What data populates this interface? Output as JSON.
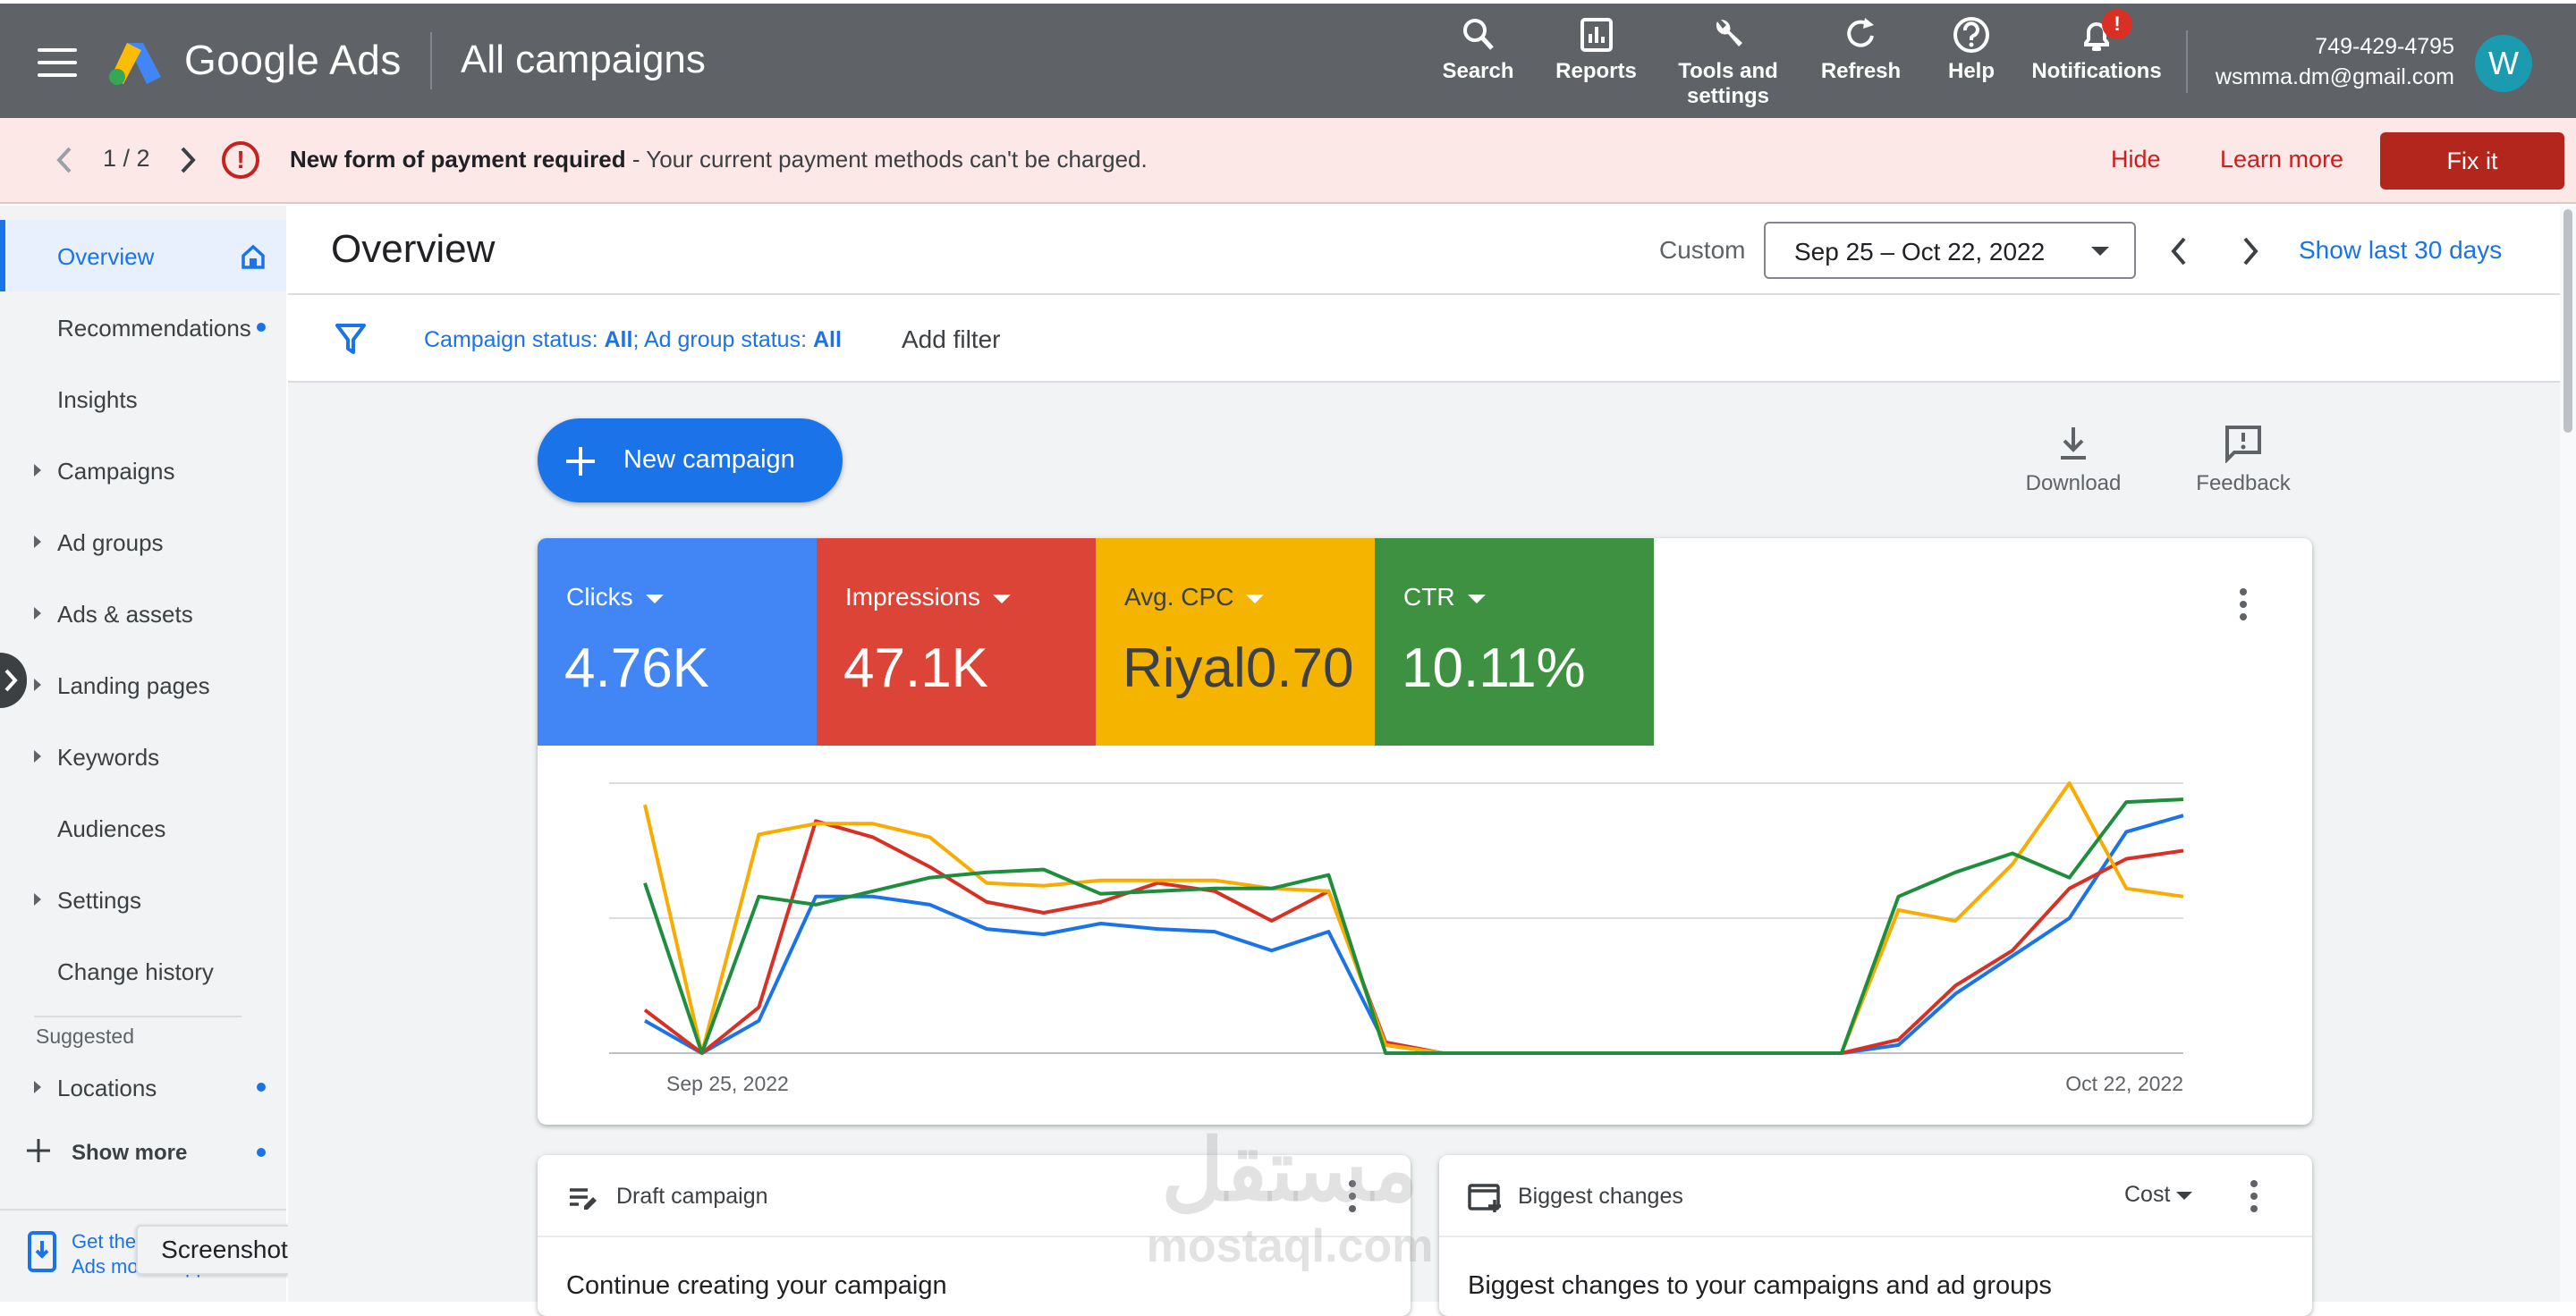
{
  "header": {
    "brand": "Google Ads",
    "page_title": "All campaigns",
    "tools": [
      {
        "label": "Search",
        "icon": "search-icon"
      },
      {
        "label": "Reports",
        "icon": "reports-icon"
      },
      {
        "label": "Tools and settings",
        "icon": "wrench-icon"
      },
      {
        "label": "Refresh",
        "icon": "refresh-icon"
      },
      {
        "label": "Help",
        "icon": "help-icon"
      },
      {
        "label": "Notifications",
        "icon": "bell-icon"
      }
    ],
    "notification_badge": "!",
    "account_id": "749-429-4795",
    "account_email": "wsmma.dm@gmail.com",
    "avatar_letter": "W"
  },
  "banner": {
    "pager": "1 / 2",
    "message_bold": "New form of payment required",
    "message_rest": " - Your current payment methods can't be charged.",
    "hide_label": "Hide",
    "learn_more_label": "Learn more",
    "fix_label": "Fix it"
  },
  "sidebar": {
    "items": [
      {
        "label": "Overview",
        "expandable": false,
        "dot": false,
        "active": true
      },
      {
        "label": "Recommendations",
        "expandable": false,
        "dot": true
      },
      {
        "label": "Insights",
        "expandable": false,
        "dot": false
      },
      {
        "label": "Campaigns",
        "expandable": true,
        "dot": false
      },
      {
        "label": "Ad groups",
        "expandable": true,
        "dot": false
      },
      {
        "label": "Ads & assets",
        "expandable": true,
        "dot": false
      },
      {
        "label": "Landing pages",
        "expandable": true,
        "dot": false
      },
      {
        "label": "Keywords",
        "expandable": true,
        "dot": false
      },
      {
        "label": "Audiences",
        "expandable": false,
        "dot": false
      },
      {
        "label": "Settings",
        "expandable": true,
        "dot": false
      },
      {
        "label": "Change history",
        "expandable": false,
        "dot": false
      }
    ],
    "suggested_label": "Suggested",
    "locations_label": "Locations",
    "show_more_label": "Show more",
    "get_app_line1": "Get the",
    "get_app_line2": "Ads mobile app",
    "tooltip": "Screenshot"
  },
  "overview": {
    "title": "Overview",
    "custom_label": "Custom",
    "date_range": "Sep 25 – Oct 22, 2022",
    "show_last_label": "Show last 30 days"
  },
  "filters": {
    "part1_label": "Campaign status: ",
    "part1_value": "All",
    "sep": "; ",
    "part2_label": "Ad group status: ",
    "part2_value": "All",
    "add_filter_label": "Add filter"
  },
  "actions": {
    "new_campaign_label": "New campaign",
    "download_label": "Download",
    "feedback_label": "Feedback"
  },
  "metrics": [
    {
      "label": "Clicks",
      "value": "4.76K",
      "color": "#4285f4"
    },
    {
      "label": "Impressions",
      "value": "47.1K",
      "color": "#db4437"
    },
    {
      "label": "Avg. CPC",
      "value": "Riyal0.70",
      "color": "#f4b400"
    },
    {
      "label": "CTR",
      "value": "10.11%",
      "color": "#3f9142"
    }
  ],
  "chart_data": {
    "type": "line",
    "x_start_label": "Sep 25, 2022",
    "x_end_label": "Oct 22, 2022",
    "x": [
      "Sep 25",
      "Sep 26",
      "Sep 27",
      "Sep 28",
      "Sep 29",
      "Sep 30",
      "Oct 1",
      "Oct 2",
      "Oct 3",
      "Oct 4",
      "Oct 5",
      "Oct 6",
      "Oct 7",
      "Oct 8",
      "Oct 9",
      "Oct 10",
      "Oct 11",
      "Oct 12",
      "Oct 13",
      "Oct 14",
      "Oct 15",
      "Oct 16",
      "Oct 17",
      "Oct 18",
      "Oct 19",
      "Oct 20",
      "Oct 21",
      "Oct 22"
    ],
    "ylim": [
      0,
      100
    ],
    "grid": true,
    "series": [
      {
        "color": "#1a73e8",
        "values": [
          12,
          0,
          12,
          58,
          58,
          55,
          46,
          44,
          48,
          46,
          45,
          38,
          45,
          3,
          0,
          0,
          0,
          0,
          0,
          0,
          0,
          0,
          3,
          22,
          36,
          50,
          82,
          88
        ]
      },
      {
        "color": "#d93025",
        "values": [
          16,
          0,
          17,
          86,
          80,
          69,
          56,
          52,
          56,
          63,
          60,
          49,
          60,
          4,
          0,
          0,
          0,
          0,
          0,
          0,
          0,
          0,
          5,
          25,
          38,
          61,
          72,
          75
        ]
      },
      {
        "color": "#f9ab00",
        "values": [
          92,
          0,
          81,
          85,
          85,
          80,
          63,
          62,
          64,
          64,
          64,
          61,
          60,
          3,
          0,
          0,
          0,
          0,
          0,
          0,
          0,
          0,
          53,
          49,
          70,
          100,
          61,
          58
        ]
      },
      {
        "color": "#1e8e3e",
        "values": [
          63,
          0,
          58,
          55,
          60,
          65,
          67,
          68,
          59,
          60,
          61,
          61,
          66,
          0,
          0,
          0,
          0,
          0,
          0,
          0,
          0,
          0,
          58,
          67,
          74,
          65,
          93,
          94
        ]
      }
    ]
  },
  "bottom_cards": {
    "draft_title": "Draft campaign",
    "draft_body": "Continue creating your campaign",
    "changes_title": "Biggest changes",
    "changes_metric": "Cost",
    "changes_body": "Biggest changes to your campaigns and ad groups"
  },
  "watermark": {
    "arabic": "مستقل",
    "latin": "mostaql.com"
  }
}
